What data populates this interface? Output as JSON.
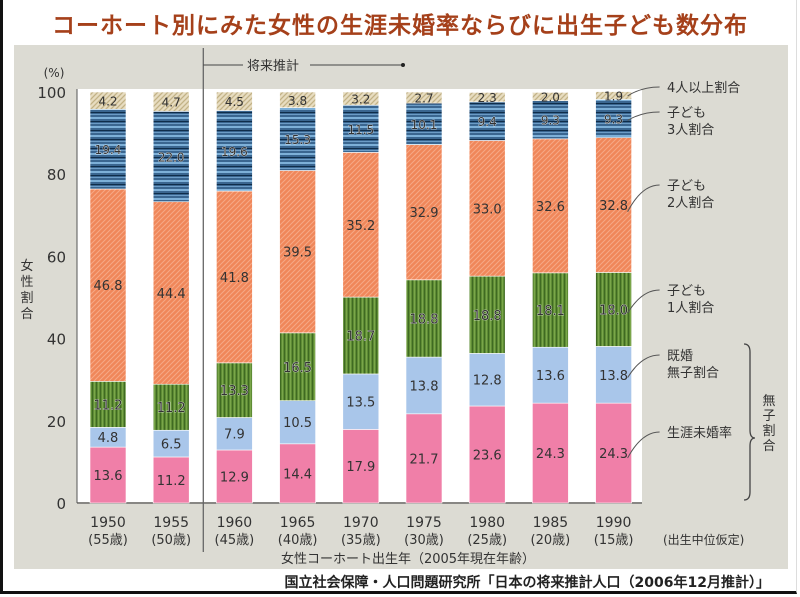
{
  "title": "コーホート別にみた女性の生涯未婚率ならびに出生子ども数分布",
  "source": "国立社会保障・人口問題研究所「日本の将来推計人口（2006年12月推計）」",
  "chart_data": {
    "type": "bar",
    "stacked": true,
    "title": "コーホート別にみた女性の生涯未婚率ならびに出生子ども数分布",
    "ylabel": "女性割合",
    "yunit": "(%)",
    "xlabel": "女性コーホート出生年（2005年現在年齢）",
    "ylim": [
      0,
      100
    ],
    "yticks": [
      0,
      20,
      40,
      60,
      80,
      100
    ],
    "projection_label": "将来推計",
    "projection_start": "1960",
    "assumption_note": "(出生中位仮定)",
    "bracket_label": "無子割合",
    "categories": [
      "1950",
      "1955",
      "1960",
      "1965",
      "1970",
      "1975",
      "1980",
      "1985",
      "1990"
    ],
    "category_ages": [
      "(55歳)",
      "(50歳)",
      "(45歳)",
      "(40歳)",
      "(35歳)",
      "(30歳)",
      "(25歳)",
      "(20歳)",
      "(15歳)"
    ],
    "series": [
      {
        "name": "生涯未婚率",
        "color": "#f07fa8",
        "pattern": "solid",
        "values": [
          13.6,
          11.2,
          12.9,
          14.4,
          17.9,
          21.7,
          23.6,
          24.3,
          24.3
        ]
      },
      {
        "name": "既婚無子割合",
        "color": "#a9c6ea",
        "pattern": "solid",
        "values": [
          4.8,
          6.5,
          7.9,
          10.5,
          13.5,
          13.8,
          12.8,
          13.6,
          13.8
        ]
      },
      {
        "name": "子ども1人割合",
        "color": "#5e8c34",
        "pattern": "vertical",
        "values": [
          11.2,
          11.2,
          13.3,
          16.5,
          18.7,
          18.8,
          18.8,
          18.1,
          18.0
        ]
      },
      {
        "name": "子ども2人割合",
        "color": "#f0875a",
        "pattern": "diagonal",
        "values": [
          46.8,
          44.4,
          41.8,
          39.5,
          35.2,
          32.9,
          33.0,
          32.6,
          32.8
        ]
      },
      {
        "name": "子ども3人割合",
        "color": "#3a6690",
        "pattern": "horizontal",
        "values": [
          19.4,
          22.0,
          19.6,
          15.3,
          11.5,
          10.1,
          9.4,
          9.3,
          9.3
        ]
      },
      {
        "name": "4人以上割合",
        "color": "#d6c9a3",
        "pattern": "diagonal-light",
        "values": [
          4.2,
          4.7,
          4.5,
          3.8,
          3.2,
          2.7,
          2.3,
          2.0,
          1.9
        ]
      }
    ],
    "legend": [
      {
        "series": "4人以上割合",
        "lines": [
          "4人以上割合"
        ]
      },
      {
        "series": "子ども3人割合",
        "lines": [
          "子ども",
          "3人割合"
        ]
      },
      {
        "series": "子ども2人割合",
        "lines": [
          "子ども",
          "2人割合"
        ]
      },
      {
        "series": "子ども1人割合",
        "lines": [
          "子ども",
          "1人割合"
        ]
      },
      {
        "series": "既婚無子割合",
        "lines": [
          "既婚",
          "無子割合"
        ]
      },
      {
        "series": "生涯未婚率",
        "lines": [
          "生涯未婚率"
        ]
      }
    ],
    "legend_placement": "right"
  }
}
